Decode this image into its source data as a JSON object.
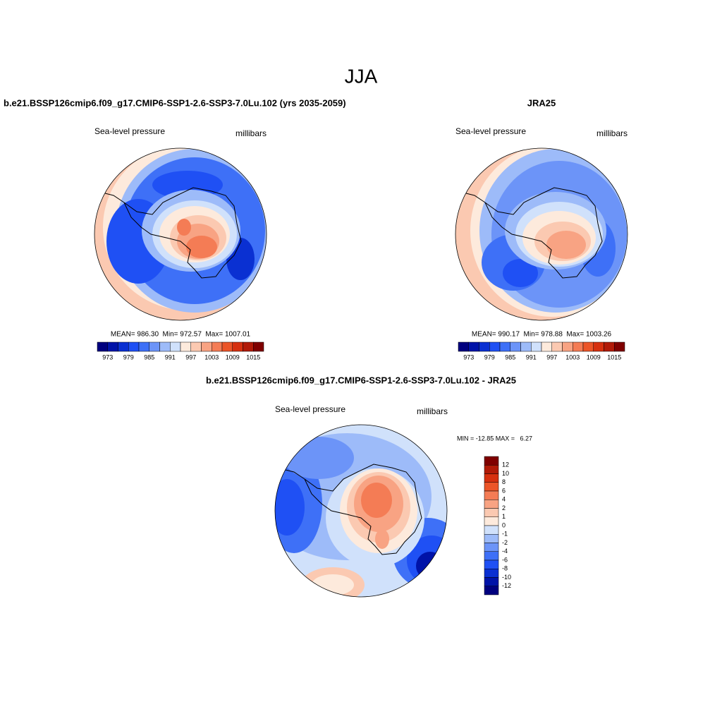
{
  "title": "JJA",
  "panels": [
    {
      "title": "b.e21.BSSP126cmip6.f09_g17.CMIP6-SSP1-2.6-SSP3-7.0Lu.102 (yrs 2035-2059)",
      "variable": "Sea-level pressure",
      "units": "millibars",
      "stats": "MEAN= 986.30  Min= 972.57  Max= 1007.01",
      "colorbar": {
        "labels": [
          "973",
          "979",
          "985",
          "991",
          "997",
          "1003",
          "1009",
          "1015"
        ],
        "colors": [
          "#00007f",
          "#0013a8",
          "#0a30d2",
          "#1f50f4",
          "#3e70f7",
          "#6c94f8",
          "#9dbbf9",
          "#d0e1fb",
          "#fdeadc",
          "#fbc9b1",
          "#f8a383",
          "#f47c55",
          "#ec5528",
          "#d6300f",
          "#b11a08",
          "#7f0000"
        ]
      }
    },
    {
      "title": "JRA25",
      "variable": "Sea-level pressure",
      "units": "millibars",
      "stats": "MEAN= 990.17  Min= 978.88  Max= 1003.26",
      "colorbar": {
        "labels": [
          "973",
          "979",
          "985",
          "991",
          "997",
          "1003",
          "1009",
          "1015"
        ],
        "colors": [
          "#00007f",
          "#0013a8",
          "#0a30d2",
          "#1f50f4",
          "#3e70f7",
          "#6c94f8",
          "#9dbbf9",
          "#d0e1fb",
          "#fdeadc",
          "#fbc9b1",
          "#f8a383",
          "#f47c55",
          "#ec5528",
          "#d6300f",
          "#b11a08",
          "#7f0000"
        ]
      }
    }
  ],
  "difference": {
    "title": "b.e21.BSSP126cmip6.f09_g17.CMIP6-SSP1-2.6-SSP3-7.0Lu.102 - JRA25",
    "variable": "Sea-level pressure",
    "units": "millibars",
    "stats": "MIN = -12.85 MAX =   6.27",
    "colorbar": {
      "labels": [
        "12",
        "10",
        "8",
        "6",
        "4",
        "2",
        "1",
        "0",
        "-1",
        "-2",
        "-4",
        "-6",
        "-8",
        "-10",
        "-12"
      ],
      "colors": [
        "#7f0000",
        "#b11a08",
        "#d6300f",
        "#ec5528",
        "#f47c55",
        "#f8a383",
        "#fbc9b1",
        "#fdeadc",
        "#d0e1fb",
        "#9dbbf9",
        "#6c94f8",
        "#3e70f7",
        "#1f50f4",
        "#0a30d2",
        "#0013a8",
        "#00007f"
      ]
    }
  }
}
